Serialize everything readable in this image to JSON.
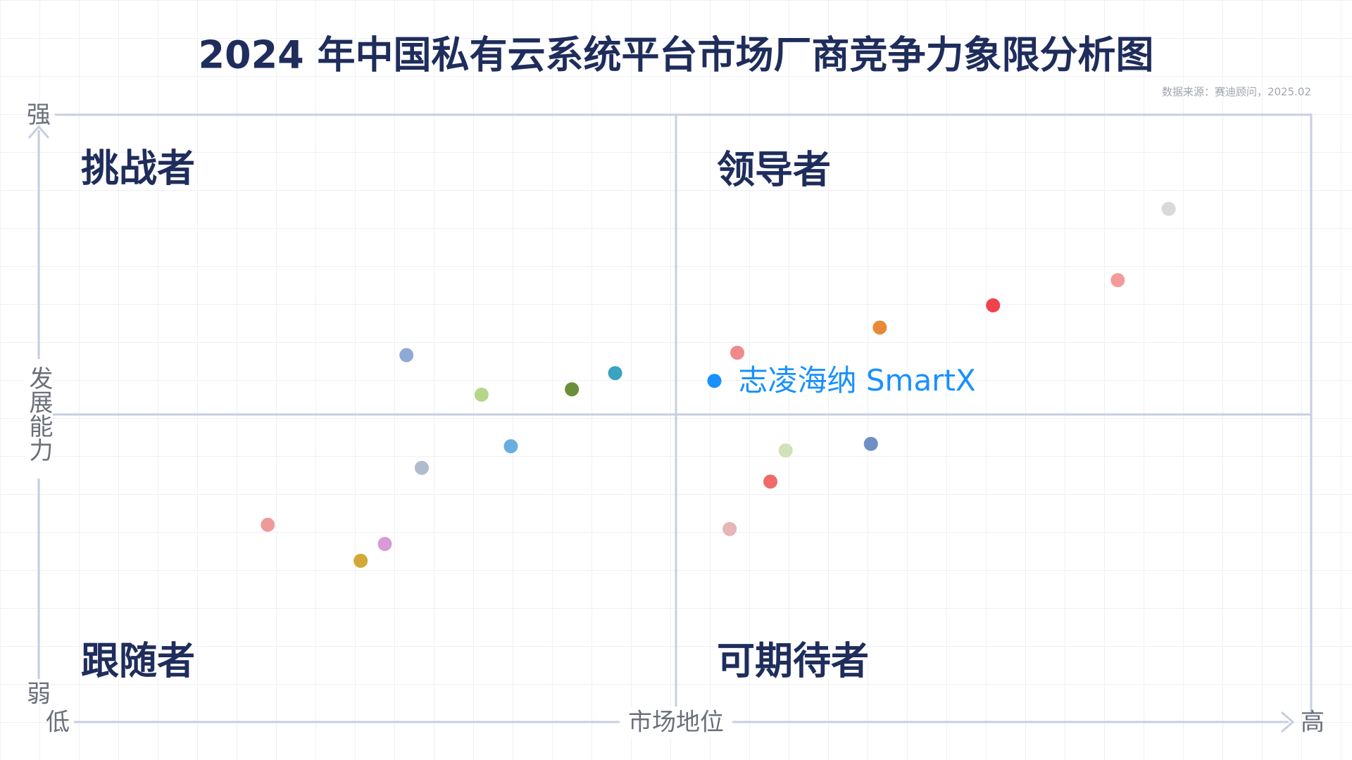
{
  "chart_data": {
    "type": "scatter",
    "title": "2024 年中国私有云系统平台市场厂商竞争力象限分析图",
    "source": "数据来源：赛迪顾问，2025.02",
    "x_label": "市场地位",
    "y_label": "发展能力",
    "x_low": "低",
    "x_high": "高",
    "y_low": "弱",
    "y_high": "强",
    "quadrants": {
      "top_left": "挑战者",
      "top_right": "领导者",
      "bottom_left": "跟随者",
      "bottom_right": "可期待者"
    },
    "xlim": [
      0,
      100
    ],
    "ylim": [
      0,
      100
    ],
    "x": [
      88.8,
      84.8,
      75.0,
      66.1,
      54.9,
      53.1,
      45.3,
      41.9,
      34.8,
      28.9,
      37.1,
      30.1,
      18.0,
      27.2,
      25.3,
      58.7,
      65.4,
      57.5,
      54.3
    ],
    "values": [
      84.3,
      72.4,
      68.2,
      64.5,
      60.3,
      55.6,
      56.9,
      54.2,
      53.3,
      59.9,
      44.7,
      41.1,
      31.6,
      28.4,
      25.6,
      44.0,
      45.1,
      38.8,
      30.9
    ],
    "colors": [
      "#d9d9d9",
      "#f59a9a",
      "#f0424a",
      "#e8893a",
      "#f08a8a",
      "#1890ff",
      "#3aa3bf",
      "#6b8e3a",
      "#b5d68a",
      "#8fa9d6",
      "#6aaee0",
      "#aebccc",
      "#ef9a9a",
      "#d99ad6",
      "#d4a838",
      "#d0e2b8",
      "#6f8fc4",
      "#f06a6a",
      "#e6b5b5"
    ],
    "labels": [
      null,
      null,
      null,
      null,
      null,
      "志凌海纳 SmartX",
      null,
      null,
      null,
      null,
      null,
      null,
      null,
      null,
      null,
      null,
      null,
      null,
      null
    ]
  }
}
